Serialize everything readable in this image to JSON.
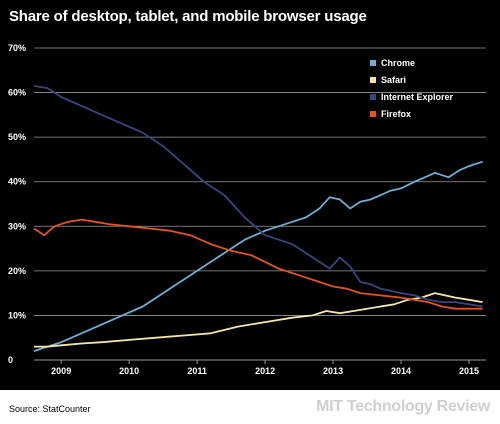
{
  "title": "Share of desktop, tablet, and mobile browser usage",
  "source": "Source: StatCounter",
  "brand": "MIT Technology Review",
  "colors": {
    "background": "#000000",
    "grid": "#9a9a9a",
    "text": "#ffffff",
    "Chrome": "#6fb0d2",
    "Safari": "#f3e6a6",
    "Internet Explorer": "#39467e",
    "Firefox": "#e2551f"
  },
  "chart_data": {
    "type": "line",
    "title": "Share of desktop, tablet, and mobile browser usage",
    "xlabel": "",
    "ylabel": "",
    "xlim": [
      2008.6,
      2015.25
    ],
    "ylim": [
      0,
      70
    ],
    "x_ticks": [
      2009,
      2010,
      2011,
      2012,
      2013,
      2014,
      2015
    ],
    "x_tick_labels": [
      "2009",
      "2010",
      "2011",
      "2012",
      "2013",
      "2014",
      "2015"
    ],
    "y_ticks": [
      0,
      10,
      20,
      30,
      40,
      50,
      60,
      70
    ],
    "y_tick_labels": [
      "0",
      "10%",
      "20%",
      "30%",
      "40%",
      "50%",
      "60%",
      "70%"
    ],
    "grid": true,
    "legend": "top-right",
    "series": [
      {
        "name": "Chrome",
        "x": [
          2008.6,
          2008.8,
          2009.0,
          2009.3,
          2009.6,
          2009.9,
          2010.2,
          2010.5,
          2010.8,
          2011.1,
          2011.4,
          2011.7,
          2012.0,
          2012.2,
          2012.4,
          2012.6,
          2012.8,
          2012.95,
          2013.1,
          2013.25,
          2013.4,
          2013.55,
          2013.7,
          2013.85,
          2014.0,
          2014.2,
          2014.35,
          2014.5,
          2014.7,
          2014.85,
          2015.0,
          2015.2
        ],
        "y": [
          2,
          3,
          4,
          6,
          8,
          10,
          12,
          15,
          18,
          21,
          24,
          27,
          29,
          30,
          31,
          32,
          34,
          36.5,
          36,
          34,
          35.5,
          36,
          37,
          38,
          38.5,
          40,
          41,
          42,
          41,
          42.5,
          43.5,
          44.5
        ]
      },
      {
        "name": "Safari",
        "x": [
          2008.6,
          2008.8,
          2009.0,
          2009.3,
          2009.6,
          2010.0,
          2010.4,
          2010.8,
          2011.2,
          2011.6,
          2012.0,
          2012.4,
          2012.7,
          2012.9,
          2013.1,
          2013.3,
          2013.5,
          2013.7,
          2013.9,
          2014.1,
          2014.3,
          2014.5,
          2014.65,
          2014.8,
          2015.0,
          2015.2
        ],
        "y": [
          3,
          3,
          3.3,
          3.7,
          4,
          4.5,
          5,
          5.5,
          6,
          7.5,
          8.5,
          9.5,
          10,
          11,
          10.5,
          11,
          11.5,
          12,
          12.5,
          13.5,
          14,
          15,
          14.5,
          14,
          13.5,
          13
        ]
      },
      {
        "name": "Internet Explorer",
        "x": [
          2008.6,
          2008.8,
          2009.0,
          2009.3,
          2009.6,
          2009.9,
          2010.2,
          2010.5,
          2010.8,
          2011.1,
          2011.4,
          2011.7,
          2012.0,
          2012.2,
          2012.4,
          2012.6,
          2012.8,
          2012.95,
          2013.1,
          2013.25,
          2013.4,
          2013.55,
          2013.7,
          2013.85,
          2014.0,
          2014.2,
          2014.4,
          2014.6,
          2014.8,
          2015.0,
          2015.2
        ],
        "y": [
          61.5,
          61,
          59,
          57,
          55,
          53,
          51,
          48,
          44,
          40,
          37,
          32,
          28,
          27,
          26,
          24,
          22,
          20.5,
          23,
          21,
          17.5,
          17,
          16,
          15.5,
          15,
          14.5,
          13.5,
          13,
          13,
          12.5,
          12
        ]
      },
      {
        "name": "Firefox",
        "x": [
          2008.6,
          2008.75,
          2008.9,
          2009.1,
          2009.3,
          2009.5,
          2009.7,
          2010.0,
          2010.3,
          2010.6,
          2010.9,
          2011.2,
          2011.5,
          2011.8,
          2012.0,
          2012.2,
          2012.5,
          2012.8,
          2013.0,
          2013.2,
          2013.4,
          2013.7,
          2014.0,
          2014.2,
          2014.4,
          2014.6,
          2014.8,
          2015.0,
          2015.2
        ],
        "y": [
          29.5,
          28,
          30,
          31,
          31.5,
          31,
          30.5,
          30,
          29.5,
          29,
          28,
          26,
          24.5,
          23.5,
          22,
          20.5,
          19,
          17.5,
          16.5,
          16,
          15,
          14.5,
          14,
          13.5,
          13,
          12,
          11.5,
          11.5,
          11.5
        ]
      }
    ]
  }
}
